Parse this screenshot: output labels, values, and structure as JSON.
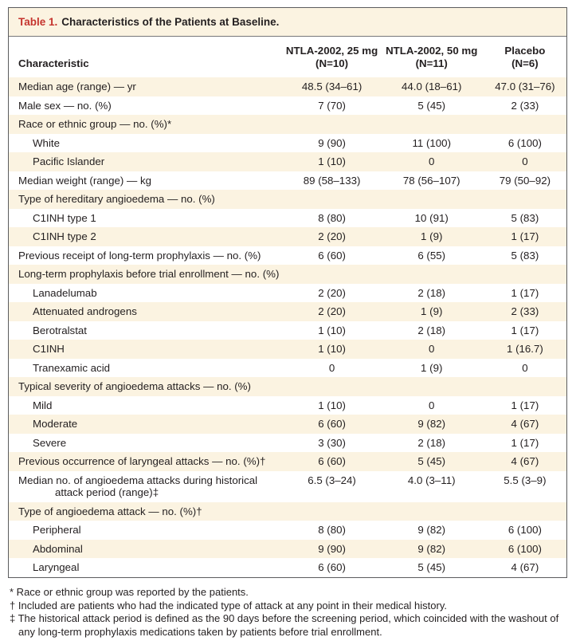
{
  "title": {
    "label": "Table 1.",
    "text": "Characteristics of the Patients at Baseline."
  },
  "header": {
    "characteristic": "Characteristic",
    "groups": [
      {
        "name": "NTLA-2002, 25 mg",
        "n": "(N=10)"
      },
      {
        "name": "NTLA-2002, 50 mg",
        "n": "(N=11)"
      },
      {
        "name": "Placebo",
        "n": "(N=6)"
      }
    ]
  },
  "rows": [
    {
      "label": "Median age (range) — yr",
      "indent": 0,
      "hang": false,
      "values": [
        "48.5 (34–61)",
        "44.0 (18–61)",
        "47.0 (31–76)"
      ]
    },
    {
      "label": "Male sex — no. (%)",
      "indent": 0,
      "hang": false,
      "values": [
        "7 (70)",
        "5 (45)",
        "2 (33)"
      ]
    },
    {
      "label": "Race or ethnic group — no. (%)*",
      "indent": 0,
      "hang": false,
      "values": [
        "",
        "",
        ""
      ]
    },
    {
      "label": "White",
      "indent": 1,
      "hang": false,
      "values": [
        "9 (90)",
        "11 (100)",
        "6 (100)"
      ]
    },
    {
      "label": "Pacific Islander",
      "indent": 1,
      "hang": false,
      "values": [
        "1 (10)",
        "0",
        "0"
      ]
    },
    {
      "label": "Median weight (range) — kg",
      "indent": 0,
      "hang": false,
      "values": [
        "89 (58–133)",
        "78 (56–107)",
        "79 (50–92)"
      ]
    },
    {
      "label": "Type of hereditary angioedema — no. (%)",
      "indent": 0,
      "hang": false,
      "values": [
        "",
        "",
        ""
      ]
    },
    {
      "label": "C1INH type 1",
      "indent": 1,
      "hang": false,
      "values": [
        "8 (80)",
        "10 (91)",
        "5 (83)"
      ]
    },
    {
      "label": "C1INH type 2",
      "indent": 1,
      "hang": false,
      "values": [
        "2 (20)",
        "1 (9)",
        "1 (17)"
      ]
    },
    {
      "label": "Previous receipt of long-term prophylaxis — no. (%)",
      "indent": 0,
      "hang": false,
      "values": [
        "6 (60)",
        "6 (55)",
        "5 (83)"
      ]
    },
    {
      "label": "Long-term prophylaxis before trial enrollment — no. (%)",
      "indent": 0,
      "hang": false,
      "values": [
        "",
        "",
        ""
      ]
    },
    {
      "label": "Lanadelumab",
      "indent": 1,
      "hang": false,
      "values": [
        "2 (20)",
        "2 (18)",
        "1 (17)"
      ]
    },
    {
      "label": "Attenuated androgens",
      "indent": 1,
      "hang": false,
      "values": [
        "2 (20)",
        "1 (9)",
        "2 (33)"
      ]
    },
    {
      "label": "Berotralstat",
      "indent": 1,
      "hang": false,
      "values": [
        "1 (10)",
        "2 (18)",
        "1 (17)"
      ]
    },
    {
      "label": "C1INH",
      "indent": 1,
      "hang": false,
      "values": [
        "1 (10)",
        "0",
        "1 (16.7)"
      ]
    },
    {
      "label": "Tranexamic acid",
      "indent": 1,
      "hang": false,
      "values": [
        "0",
        "1 (9)",
        "0"
      ]
    },
    {
      "label": "Typical severity of angioedema attacks — no. (%)",
      "indent": 0,
      "hang": false,
      "values": [
        "",
        "",
        ""
      ]
    },
    {
      "label": "Mild",
      "indent": 1,
      "hang": false,
      "values": [
        "1 (10)",
        "0",
        "1 (17)"
      ]
    },
    {
      "label": "Moderate",
      "indent": 1,
      "hang": false,
      "values": [
        "6 (60)",
        "9 (82)",
        "4 (67)"
      ]
    },
    {
      "label": "Severe",
      "indent": 1,
      "hang": false,
      "values": [
        "3 (30)",
        "2 (18)",
        "1 (17)"
      ]
    },
    {
      "label": "Previous occurrence of laryngeal attacks — no. (%)†",
      "indent": 0,
      "hang": false,
      "values": [
        "6 (60)",
        "5 (45)",
        "4 (67)"
      ]
    },
    {
      "label": "Median no. of angioedema attacks during historical attack period (range)‡",
      "indent": 0,
      "hang": true,
      "values": [
        "6.5 (3–24)",
        "4.0 (3–11)",
        "5.5 (3–9)"
      ]
    },
    {
      "label": "Type of angioedema attack — no. (%)†",
      "indent": 0,
      "hang": false,
      "values": [
        "",
        "",
        ""
      ]
    },
    {
      "label": "Peripheral",
      "indent": 1,
      "hang": false,
      "values": [
        "8 (80)",
        "9 (82)",
        "6 (100)"
      ]
    },
    {
      "label": "Abdominal",
      "indent": 1,
      "hang": false,
      "values": [
        "9 (90)",
        "9 (82)",
        "6 (100)"
      ]
    },
    {
      "label": "Laryngeal",
      "indent": 1,
      "hang": false,
      "values": [
        "6 (60)",
        "5 (45)",
        "4 (67)"
      ]
    }
  ],
  "footnotes": [
    {
      "symbol": "*",
      "text": "Race or ethnic group was reported by the patients."
    },
    {
      "symbol": "†",
      "text": "Included are patients who had the indicated type of attack at any point in their medical history."
    },
    {
      "symbol": "‡",
      "text": "The historical attack period is defined as the 90 days before the screening period, which coincided with the washout of any long-term prophylaxis medications taken by patients before trial enrollment."
    }
  ],
  "colors": {
    "accent_red": "#c5342e",
    "row_shade": "#fbf3e1",
    "border_gray": "#5b5c5e"
  }
}
